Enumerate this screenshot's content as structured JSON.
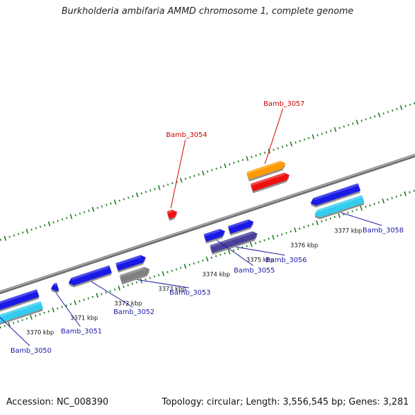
{
  "title": "Burkholderia ambifaria AMMD chromosome 1, complete genome",
  "footer": {
    "accession": "Accession: NC_008390",
    "topology": "Topology: circular; Length: 3,556,545 bp; Genes: 3,281"
  },
  "colors": {
    "backbone": "#8c8c8c",
    "ticks": "#1f7a1f",
    "label_default": "#1a1aa6",
    "label_highlight": "#cc0000",
    "blue": "#1a1ae6",
    "cyan": "#33ccee",
    "red": "#ee1111",
    "orange": "#ff9900",
    "gray": "#808080",
    "slate": "#4a3f99"
  },
  "scale_labels": [
    {
      "kbp": 3370,
      "text": "3370 kbp"
    },
    {
      "kbp": 3371,
      "text": "3371 kbp"
    },
    {
      "kbp": 3372,
      "text": "3372 kbp"
    },
    {
      "kbp": 3373,
      "text": "3373 kbp"
    },
    {
      "kbp": 3374,
      "text": "3374 kbp"
    },
    {
      "kbp": 3375,
      "text": "3375 kbp"
    },
    {
      "kbp": 3376,
      "text": "3376 kbp"
    },
    {
      "kbp": 3377,
      "text": "3377 kbp"
    }
  ],
  "genes": [
    {
      "id": "g1",
      "start": 3369.0,
      "end": 3370.3,
      "track": "inner",
      "color": "blue",
      "direction": "reverse"
    },
    {
      "id": "g2",
      "start": 3369.0,
      "end": 3370.3,
      "track": "inner2",
      "color": "cyan",
      "direction": "reverse"
    },
    {
      "id": "g3",
      "start": 3370.6,
      "end": 3370.75,
      "track": "inner",
      "color": "blue",
      "direction": "reverse",
      "label": "Bamb_3051"
    },
    {
      "id": "g4",
      "start": 3371.0,
      "end": 3371.95,
      "track": "inner",
      "color": "blue",
      "direction": "reverse",
      "label": "Bamb_3052"
    },
    {
      "id": "g5",
      "start": 3372.1,
      "end": 3372.75,
      "track": "inner",
      "color": "blue",
      "direction": "forward"
    },
    {
      "id": "g6",
      "start": 3372.1,
      "end": 3372.75,
      "track": "inner2",
      "color": "gray",
      "direction": "forward",
      "label": "Bamb_3053"
    },
    {
      "id": "g7",
      "start": 3373.5,
      "end": 3373.7,
      "track": "outer",
      "color": "red",
      "direction": "forward",
      "label": "Bamb_3054",
      "highlight": true
    },
    {
      "id": "g8",
      "start": 3374.1,
      "end": 3374.55,
      "track": "inner",
      "color": "blue",
      "direction": "forward",
      "label": "Bamb_3055"
    },
    {
      "id": "g9",
      "start": 3374.65,
      "end": 3375.2,
      "track": "inner",
      "color": "blue",
      "direction": "forward"
    },
    {
      "id": "g10",
      "start": 3374.15,
      "end": 3375.2,
      "track": "inner2",
      "color": "slate",
      "direction": "forward",
      "label": "Bamb_3056"
    },
    {
      "id": "g11",
      "start": 3375.4,
      "end": 3376.25,
      "track": "outer2",
      "color": "orange",
      "direction": "forward",
      "label": "Bamb_3057",
      "highlight": true
    },
    {
      "id": "g12",
      "start": 3375.4,
      "end": 3376.25,
      "track": "outer",
      "color": "red",
      "direction": "forward"
    },
    {
      "id": "g13",
      "start": 3376.5,
      "end": 3377.6,
      "track": "inner",
      "color": "blue",
      "direction": "reverse"
    },
    {
      "id": "g14",
      "start": 3376.5,
      "end": 3377.6,
      "track": "inner2",
      "color": "cyan",
      "direction": "reverse",
      "label": "Bamb_3058"
    },
    {
      "id": "g15",
      "start": 3369.0,
      "end": 3369.5,
      "track": "inner",
      "color": "blue",
      "direction": "reverse",
      "label": "Bamb_3050"
    }
  ]
}
